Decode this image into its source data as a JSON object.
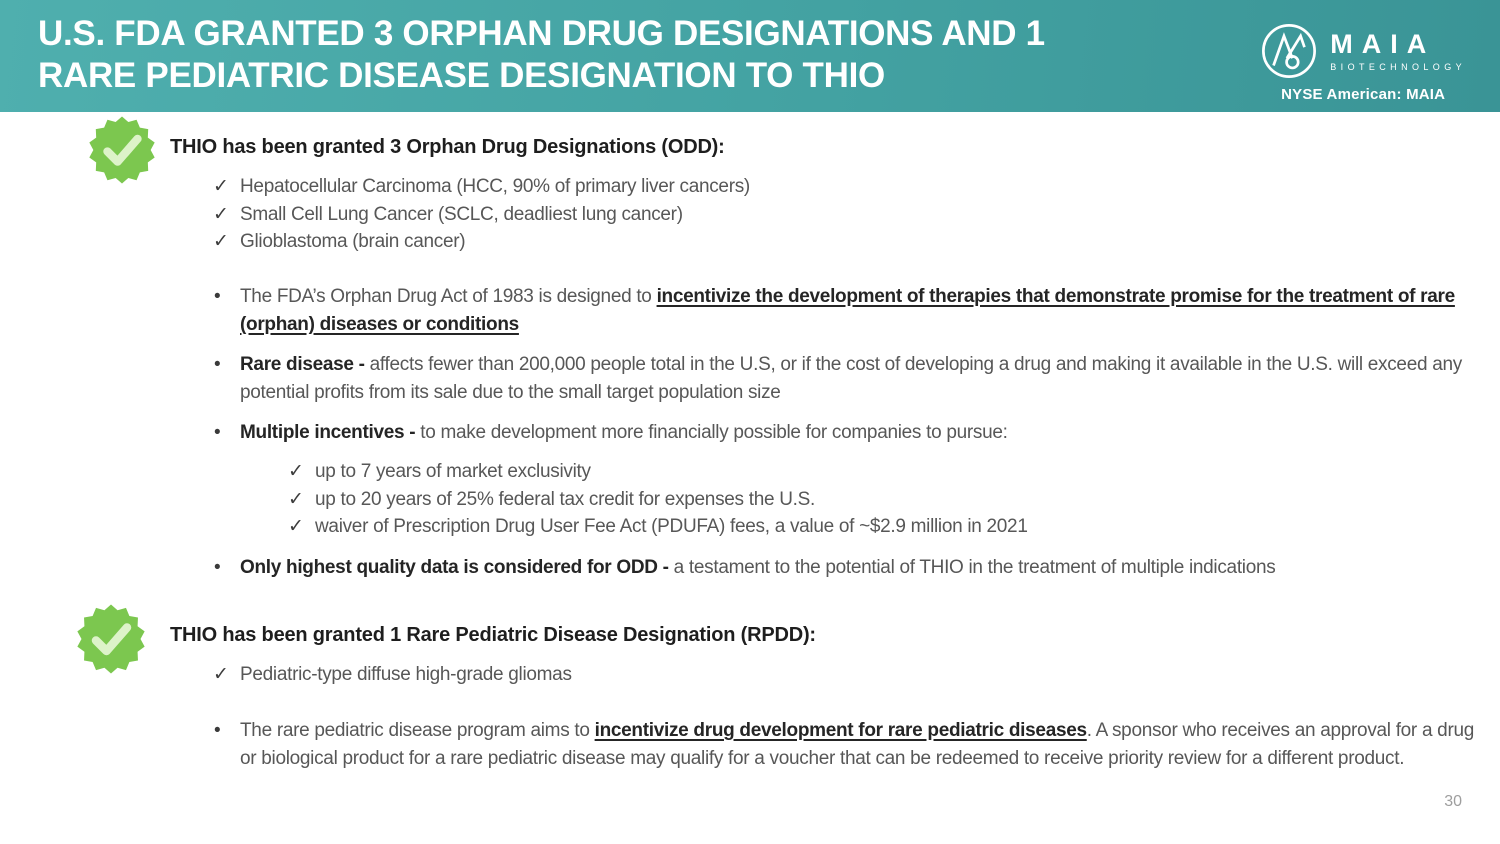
{
  "header": {
    "title_line1": "U.S. FDA GRANTED 3 ORPHAN DRUG DESIGNATIONS AND 1",
    "title_line2": "RARE PEDIATRIC DISEASE DESIGNATION TO THIO",
    "logo": {
      "name": "MAIA",
      "subtitle": "BIOTECHNOLOGY",
      "ticker": "NYSE American: MAIA"
    }
  },
  "icons": {
    "check": "✓",
    "bullet": "•",
    "badge_1": "verified-check-seal",
    "badge_2": "verified-check-seal"
  },
  "colors": {
    "header_teal_start": "#4FAFAE",
    "header_teal_end": "#3A9496",
    "badge_green": "#7CC74F",
    "badge_check_light_green": "#DDF3C9",
    "body_text": "#575757",
    "emphasis_text": "#252525",
    "title_text": "#FFFFFF",
    "page_number": "#9E9E9E"
  },
  "section_odd": {
    "heading": "THIO has been granted 3 Orphan Drug Designations (ODD):",
    "check_items": [
      "Hepatocellular Carcinoma (HCC, 90% of primary liver cancers)",
      "Small Cell Lung Cancer (SCLC, deadliest lung cancer)",
      "Glioblastoma (brain cancer)"
    ],
    "bullet_act": {
      "pre": "The FDA’s Orphan Drug Act of 1983 is designed to ",
      "emphasis": "incentivize the development of therapies that demonstrate promise for the treatment of rare (orphan) diseases or conditions"
    },
    "bullet_rare_disease": {
      "lead": "Rare disease -",
      "text": " affects fewer than 200,000 people total in the U.S, or if the cost of developing a drug and making it available in the U.S. will exceed any potential profits from its sale due to the small target population size"
    },
    "bullet_incentives": {
      "lead": "Multiple incentives -",
      "text": " to make development more financially possible for companies to pursue:"
    },
    "incentive_items": [
      "up to 7 years of market exclusivity",
      "up to 20 years of 25% federal tax credit for expenses the U.S.",
      "waiver of Prescription Drug User Fee Act (PDUFA) fees, a value of ~$2.9 million in 2021"
    ],
    "bullet_quality": {
      "lead": "Only highest quality data is considered for ODD -",
      "text": " a testament to the potential of THIO in the treatment of multiple indications"
    }
  },
  "section_rpdd": {
    "heading": "THIO has been granted 1 Rare Pediatric Disease Designation (RPDD):",
    "check_items": [
      "Pediatric-type diffuse high-grade gliomas"
    ],
    "bullet_program": {
      "pre": "The rare pediatric disease program aims to ",
      "emphasis": "incentivize drug development for rare pediatric diseases",
      "post": ". A sponsor who receives an approval for a drug or biological product for a rare pediatric disease may qualify for a voucher that can be redeemed to receive priority review for a different product."
    }
  },
  "footer": {
    "page_number": "30"
  }
}
